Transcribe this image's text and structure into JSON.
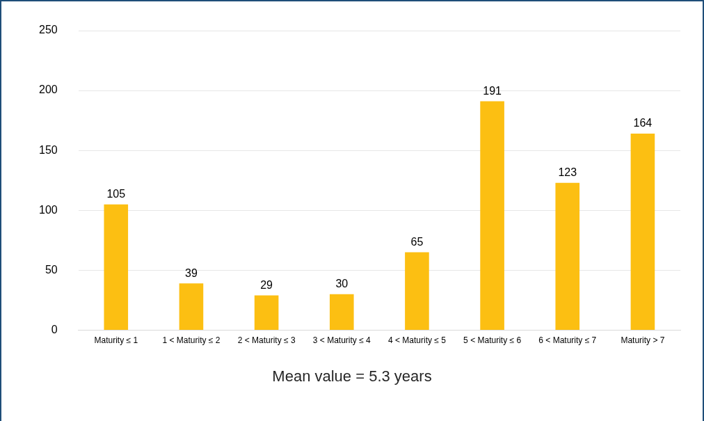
{
  "chart_data": {
    "type": "bar",
    "categories": [
      "Maturity ≤ 1",
      "1 < Maturity ≤ 2",
      "2 < Maturity ≤ 3",
      "3 < Maturity ≤ 4",
      "4 < Maturity ≤ 5",
      "5 < Maturity ≤ 6",
      "6 < Maturity ≤ 7",
      "Maturity > 7"
    ],
    "values": [
      105,
      39,
      29,
      30,
      65,
      191,
      123,
      164
    ],
    "color": "#fcbf12",
    "ylim": [
      0,
      250
    ],
    "yticks": [
      0,
      50,
      100,
      150,
      200,
      250
    ],
    "grid": "y",
    "legend": false,
    "data_labels": true,
    "annotations": [
      "Mean value = 5.3 years"
    ]
  }
}
